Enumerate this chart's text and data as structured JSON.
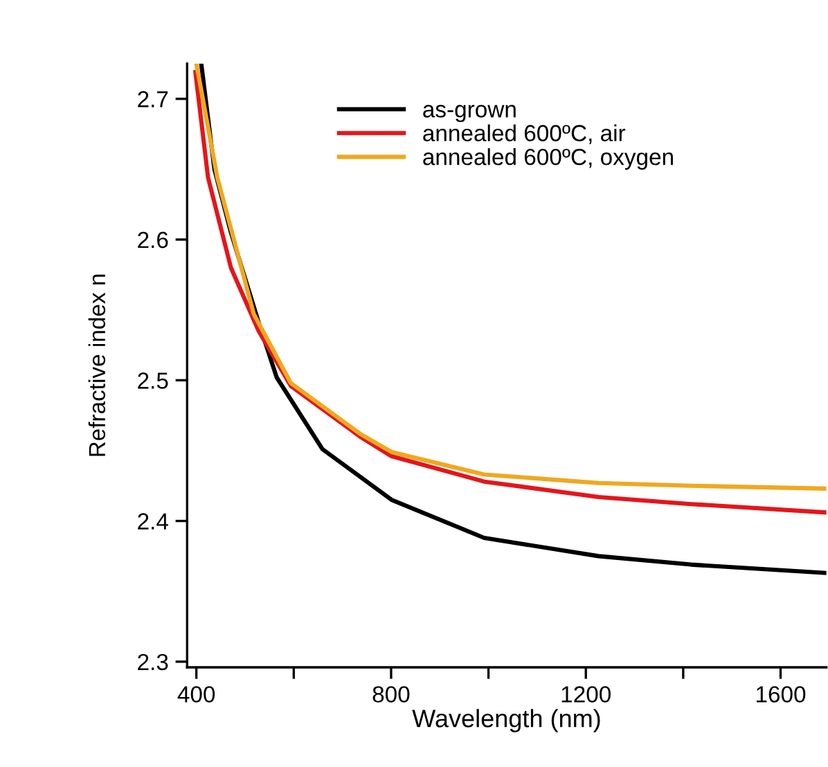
{
  "chart_data": {
    "type": "line",
    "xlabel": "Wavelength (nm)",
    "ylabel": "Refractive index n",
    "xlim": [
      381,
      1694
    ],
    "ylim": [
      2.296,
      2.725
    ],
    "xticks": [
      400,
      {
        "value": 600,
        "label": null
      },
      800,
      {
        "value": 1000,
        "label": null
      },
      1200,
      {
        "value": 1400,
        "label": null
      },
      1600
    ],
    "yticks": [
      2.3,
      2.4,
      2.5,
      2.6,
      2.7
    ],
    "grid": false,
    "legend": "top",
    "marker": "none",
    "line_style": "solid",
    "series": [
      {
        "name": "as-grown",
        "color": "#000000",
        "x": [
          410,
          437,
          471,
          528,
          565,
          659,
          801,
          991,
          1226,
          1416,
          1694
        ],
        "values": [
          2.725,
          2.65,
          2.605,
          2.541,
          2.502,
          2.451,
          2.415,
          2.388,
          2.375,
          2.369,
          2.363
        ]
      },
      {
        "name": "annealed 600ºC, air",
        "color": "#e3161b",
        "x": [
          398,
          424,
          471,
          528,
          594,
          736,
          801,
          991,
          1226,
          1416,
          1694
        ],
        "values": [
          2.719,
          2.644,
          2.58,
          2.535,
          2.496,
          2.46,
          2.446,
          2.428,
          2.417,
          2.412,
          2.406
        ]
      },
      {
        "name": "annealed 600ºC, oxygen",
        "color": "#f0a820",
        "x": [
          400,
          443,
          518,
          594,
          736,
          801,
          991,
          1226,
          1416,
          1694
        ],
        "values": [
          2.725,
          2.644,
          2.547,
          2.498,
          2.462,
          2.449,
          2.433,
          2.427,
          2.425,
          2.423
        ]
      }
    ]
  }
}
